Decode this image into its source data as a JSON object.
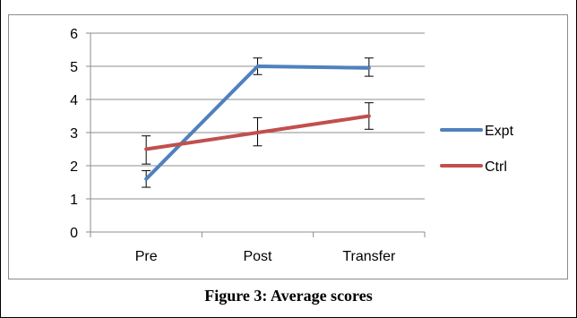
{
  "caption": "Figure 3: Average scores",
  "chart_data": {
    "type": "line",
    "categories": [
      "Pre",
      "Post",
      "Transfer"
    ],
    "ylim": [
      0,
      6
    ],
    "yticks": [
      0,
      1,
      2,
      3,
      4,
      5,
      6
    ],
    "grid": "horizontal",
    "legend_position": "right",
    "series": [
      {
        "name": "Expt",
        "color": "#4f81bd",
        "values": [
          1.6,
          5.0,
          4.95
        ],
        "error_low": [
          1.35,
          4.75,
          4.7
        ],
        "error_high": [
          1.85,
          5.25,
          5.25
        ]
      },
      {
        "name": "Ctrl",
        "color": "#c0504d",
        "values": [
          2.5,
          3.0,
          3.5
        ],
        "error_low": [
          2.05,
          2.6,
          3.1
        ],
        "error_high": [
          2.9,
          3.45,
          3.9
        ]
      }
    ]
  }
}
